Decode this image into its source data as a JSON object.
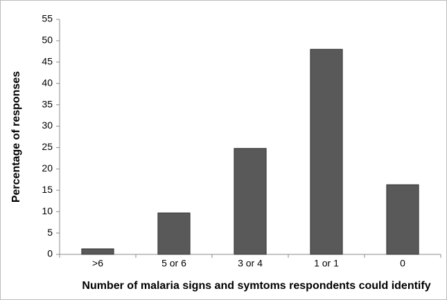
{
  "chart_data": {
    "type": "bar",
    "xlabel": "Number of malaria signs and symtoms respondents could identify",
    "ylabel": "Percentage of responses",
    "categories": [
      ">6",
      "5 or 6",
      "3 or 4",
      "1 or 1",
      "0"
    ],
    "values": [
      1.3,
      9.7,
      24.8,
      48,
      16.3
    ],
    "color": "#595959",
    "ylim": [
      0,
      55
    ],
    "yticks": [
      0,
      5,
      10,
      15,
      20,
      25,
      30,
      35,
      40,
      45,
      50,
      55
    ],
    "grid": false
  }
}
